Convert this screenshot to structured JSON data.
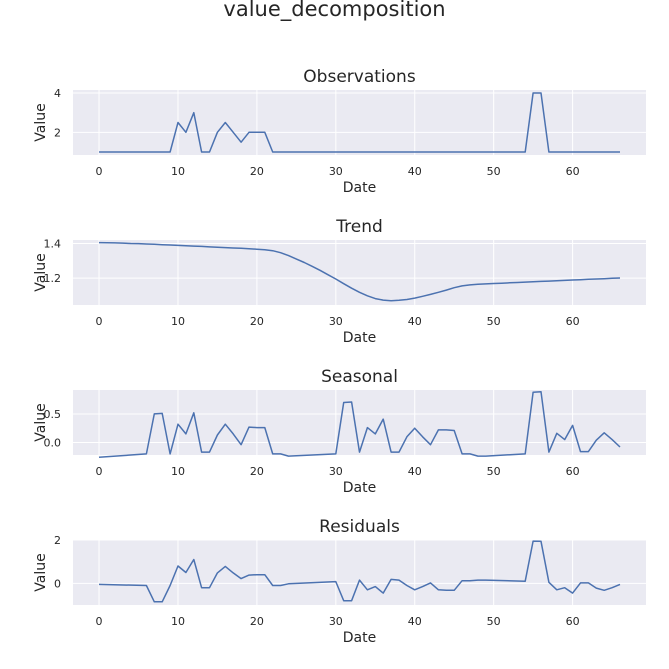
{
  "figure": {
    "suptitle": "value_decomposition",
    "line_color": "#4c72b0",
    "background_color": "#eaeaf2"
  },
  "chart_data": [
    {
      "type": "line",
      "title": "Observations",
      "xlabel": "Date",
      "ylabel": "Value",
      "xlim": [
        -3.3,
        69.3
      ],
      "ylim": [
        0.85,
        4.15
      ],
      "xticks": [
        0,
        10,
        20,
        30,
        40,
        50,
        60
      ],
      "xtick_labels": [
        "0",
        "10",
        "20",
        "30",
        "40",
        "50",
        "60"
      ],
      "yticks": [
        2,
        4
      ],
      "ytick_labels": [
        "2",
        "4"
      ],
      "grid": true,
      "series": [
        {
          "x": [
            0,
            1,
            2,
            3,
            4,
            5,
            6,
            7,
            8,
            9,
            10,
            11,
            12,
            13,
            14,
            15,
            16,
            17,
            18,
            19,
            20,
            21,
            22,
            23,
            24,
            25,
            26,
            27,
            28,
            29,
            30,
            31,
            32,
            33,
            34,
            35,
            36,
            37,
            38,
            39,
            40,
            41,
            42,
            43,
            44,
            45,
            46,
            47,
            48,
            49,
            50,
            51,
            52,
            53,
            54,
            55,
            56,
            57,
            58,
            59,
            60,
            61,
            62,
            63,
            64,
            65,
            66
          ],
          "y": [
            1,
            1,
            1,
            1,
            1,
            1,
            1,
            1,
            1,
            1,
            2.5,
            2,
            3,
            1,
            1,
            2,
            2.5,
            2,
            1.5,
            2,
            2,
            2,
            1,
            1,
            1,
            1,
            1,
            1,
            1,
            1,
            1,
            1,
            1,
            1,
            1,
            1,
            1,
            1,
            1,
            1,
            1,
            1,
            1,
            1,
            1,
            1,
            1,
            1,
            1,
            1,
            1,
            1,
            1,
            1,
            1,
            4,
            4,
            1,
            1,
            1,
            1,
            1,
            1,
            1,
            1,
            1,
            1
          ]
        }
      ]
    },
    {
      "type": "line",
      "title": "Trend",
      "xlabel": "Date",
      "ylabel": "Value",
      "xlim": [
        -3.3,
        69.3
      ],
      "ylim": [
        1.045,
        1.42
      ],
      "xticks": [
        0,
        10,
        20,
        30,
        40,
        50,
        60
      ],
      "xtick_labels": [
        "0",
        "10",
        "20",
        "30",
        "40",
        "50",
        "60"
      ],
      "yticks": [
        1.2,
        1.4
      ],
      "ytick_labels": [
        "1.2",
        "1.4"
      ],
      "grid": true,
      "series": [
        {
          "x": [
            0,
            1,
            2,
            3,
            4,
            5,
            6,
            7,
            8,
            9,
            10,
            11,
            12,
            13,
            14,
            15,
            16,
            17,
            18,
            19,
            20,
            21,
            22,
            23,
            24,
            25,
            26,
            27,
            28,
            29,
            30,
            31,
            32,
            33,
            34,
            35,
            36,
            37,
            38,
            39,
            40,
            41,
            42,
            43,
            44,
            45,
            46,
            47,
            48,
            49,
            50,
            51,
            52,
            53,
            54,
            55,
            56,
            57,
            58,
            59,
            60,
            61,
            62,
            63,
            64,
            65,
            66
          ],
          "y": [
            1.405,
            1.404,
            1.403,
            1.402,
            1.4,
            1.399,
            1.397,
            1.395,
            1.393,
            1.391,
            1.389,
            1.387,
            1.385,
            1.383,
            1.38,
            1.378,
            1.376,
            1.374,
            1.372,
            1.37,
            1.367,
            1.364,
            1.358,
            1.347,
            1.33,
            1.31,
            1.29,
            1.268,
            1.245,
            1.22,
            1.195,
            1.168,
            1.142,
            1.118,
            1.098,
            1.082,
            1.073,
            1.07,
            1.072,
            1.077,
            1.085,
            1.095,
            1.106,
            1.118,
            1.131,
            1.145,
            1.155,
            1.161,
            1.165,
            1.167,
            1.169,
            1.171,
            1.173,
            1.175,
            1.177,
            1.179,
            1.181,
            1.183,
            1.185,
            1.187,
            1.189,
            1.191,
            1.193,
            1.195,
            1.197,
            1.199,
            1.201
          ]
        }
      ]
    },
    {
      "type": "line",
      "title": "Seasonal",
      "xlabel": "Date",
      "ylabel": "Value",
      "xlim": [
        -3.3,
        69.3
      ],
      "ylim": [
        -0.22,
        0.92
      ],
      "xticks": [
        0,
        10,
        20,
        30,
        40,
        50,
        60
      ],
      "xtick_labels": [
        "0",
        "10",
        "20",
        "30",
        "40",
        "50",
        "60"
      ],
      "yticks": [
        0.0,
        0.5
      ],
      "ytick_labels": [
        "0.0",
        "0.5"
      ],
      "grid": true,
      "series": [
        {
          "x": [
            0,
            6,
            7,
            8,
            9,
            10,
            11,
            12,
            13,
            14,
            15,
            16,
            17,
            18,
            19,
            20,
            21,
            22,
            23,
            24,
            30,
            31,
            32,
            33,
            34,
            35,
            36,
            37,
            38,
            39,
            40,
            41,
            42,
            43,
            44,
            45,
            46,
            47,
            48,
            49,
            54,
            55,
            56,
            57,
            58,
            59,
            60,
            61,
            62,
            63,
            64,
            65,
            66
          ],
          "y": [
            -0.26,
            -0.2,
            0.5,
            0.51,
            -0.2,
            0.32,
            0.15,
            0.52,
            -0.17,
            -0.17,
            0.13,
            0.32,
            0.15,
            -0.04,
            0.27,
            0.26,
            0.26,
            -0.2,
            -0.2,
            -0.24,
            -0.2,
            0.7,
            0.71,
            -0.17,
            0.26,
            0.15,
            0.41,
            -0.17,
            -0.17,
            0.1,
            0.25,
            0.1,
            -0.04,
            0.22,
            0.22,
            0.21,
            -0.2,
            -0.2,
            -0.24,
            -0.24,
            -0.2,
            0.88,
            0.89,
            -0.17,
            0.16,
            0.05,
            0.3,
            -0.16,
            -0.16,
            0.04,
            0.17,
            0.05,
            -0.08
          ]
        }
      ]
    },
    {
      "type": "line",
      "title": "Residuals",
      "xlabel": "Date",
      "ylabel": "Value",
      "xlim": [
        -3.3,
        69.3
      ],
      "ylim": [
        -1.0,
        2.0
      ],
      "xticks": [
        0,
        10,
        20,
        30,
        40,
        50,
        60
      ],
      "xtick_labels": [
        "0",
        "10",
        "20",
        "30",
        "40",
        "50",
        "60"
      ],
      "yticks": [
        0,
        2
      ],
      "ytick_labels": [
        "0",
        "2"
      ],
      "grid": true,
      "series": [
        {
          "x": [
            0,
            6,
            7,
            8,
            9,
            10,
            11,
            12,
            13,
            14,
            15,
            16,
            17,
            18,
            19,
            20,
            21,
            22,
            23,
            24,
            30,
            31,
            32,
            33,
            34,
            35,
            36,
            37,
            38,
            39,
            40,
            41,
            42,
            43,
            44,
            45,
            46,
            47,
            48,
            49,
            54,
            55,
            56,
            57,
            58,
            59,
            60,
            61,
            62,
            63,
            64,
            65,
            66
          ],
          "y": [
            -0.05,
            -0.1,
            -0.85,
            -0.85,
            -0.1,
            0.8,
            0.5,
            1.1,
            -0.2,
            -0.2,
            0.48,
            0.78,
            0.48,
            0.22,
            0.38,
            0.4,
            0.4,
            -0.1,
            -0.1,
            -0.02,
            0.08,
            -0.8,
            -0.8,
            0.15,
            -0.3,
            -0.15,
            -0.45,
            0.18,
            0.15,
            -0.1,
            -0.3,
            -0.15,
            0.02,
            -0.3,
            -0.32,
            -0.32,
            0.12,
            0.12,
            0.15,
            0.15,
            0.1,
            1.95,
            1.94,
            0.05,
            -0.3,
            -0.2,
            -0.45,
            0.02,
            0.02,
            -0.22,
            -0.32,
            -0.2,
            -0.05
          ]
        }
      ]
    }
  ]
}
